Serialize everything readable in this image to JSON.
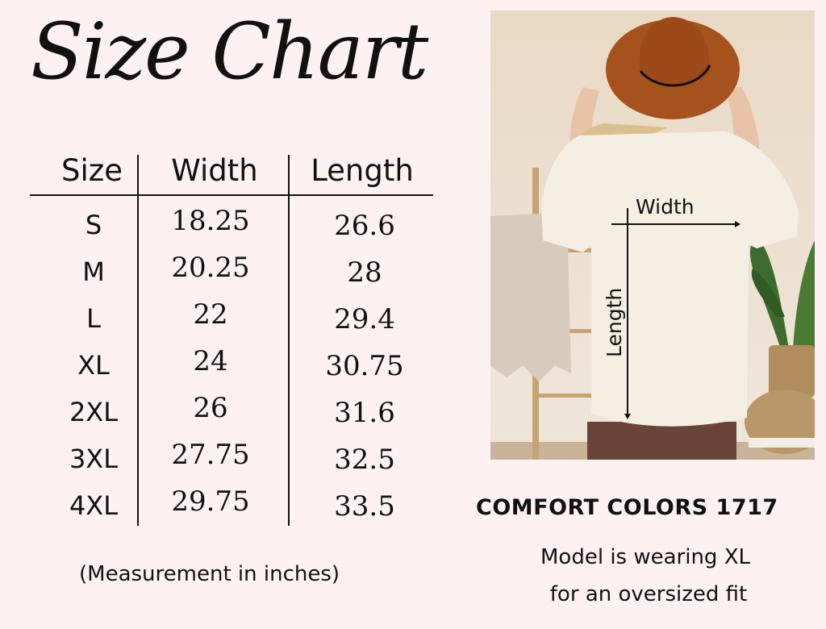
{
  "title": "Size Chart",
  "table": {
    "headers": [
      "Size",
      "Width",
      "Length"
    ],
    "rows": [
      {
        "size": "S",
        "width": "18.25",
        "length": "26.6"
      },
      {
        "size": "M",
        "width": "20.25",
        "length": "28"
      },
      {
        "size": "L",
        "width": "22",
        "length": "29.4"
      },
      {
        "size": "XL",
        "width": "24",
        "length": "30.75"
      },
      {
        "size": "2XL",
        "width": "26",
        "length": "31.6"
      },
      {
        "size": "3XL",
        "width": "27.75",
        "length": "32.5"
      },
      {
        "size": "4XL",
        "width": "29.75",
        "length": "33.5"
      }
    ]
  },
  "note": "(Measurement in inches)",
  "photo": {
    "width_label": "Width",
    "length_label": "Length"
  },
  "brand": "COMFORT COLORS 1717",
  "model_line1": "Model is wearing XL",
  "model_line2": "for an oversized fit"
}
